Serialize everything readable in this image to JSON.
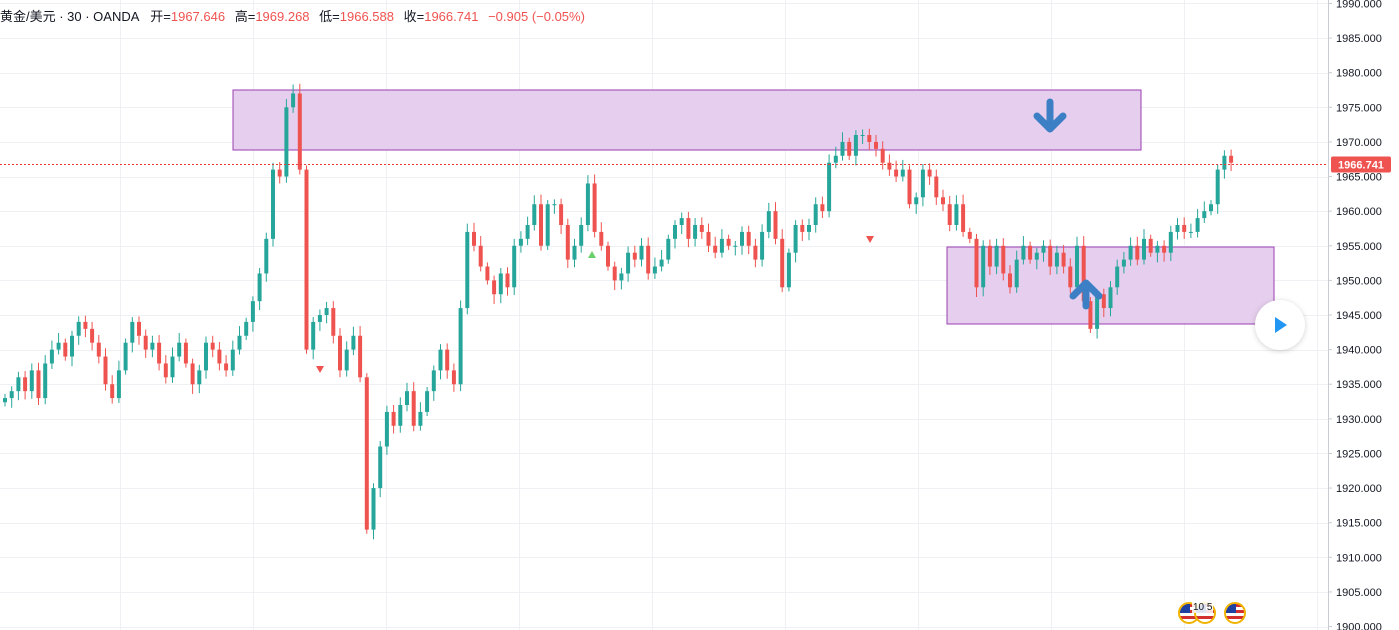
{
  "legend": {
    "symbol": "黄金/美元 · 30 · OANDA",
    "open_label": "开=",
    "open": "1967.646",
    "high_label": "高=",
    "high": "1969.268",
    "low_label": "低=",
    "low": "1966.588",
    "close_label": "收=",
    "close": "1966.741",
    "change": "−0.905 (−0.05%)"
  },
  "price_label": "1966.741",
  "flags_badge": "10 5",
  "icons": {
    "play": "play-icon",
    "arrow_down": "arrow-down-icon",
    "arrow_up": "arrow-up-icon",
    "flag": "us-flag-icon"
  },
  "colors": {
    "up": "#26a69a",
    "down": "#ef5350",
    "zone_fill": "#e6cfee",
    "zone_border": "#9a3fb0",
    "arrow": "#3d7fc4",
    "price_line": "#e53935"
  },
  "chart_data": {
    "type": "candlestick",
    "y_ticks": [
      "1990.000",
      "1985.000",
      "1980.000",
      "1975.000",
      "1970.000",
      "1965.000",
      "1960.000",
      "1955.000",
      "1950.000",
      "1945.000",
      "1940.000",
      "1935.000",
      "1930.000",
      "1925.000",
      "1920.000",
      "1915.000",
      "1910.000",
      "1905.000",
      "1900.000"
    ],
    "ylim": [
      1899.5,
      1990.5
    ],
    "current_price": 1966.741,
    "bars_close": [
      1933,
      1934,
      1936,
      1934,
      1937,
      1933,
      1938,
      1940,
      1941,
      1939,
      1942,
      1944,
      1943,
      1941,
      1939,
      1935,
      1933,
      1937,
      1941,
      1944,
      1942,
      1940,
      1941,
      1938,
      1936,
      1939,
      1941,
      1938,
      1935,
      1937,
      1941,
      1940,
      1938,
      1937,
      1940,
      1942,
      1944,
      1947,
      1951,
      1956,
      1966,
      1965,
      1975,
      1977,
      1966,
      1940,
      1944,
      1945,
      1946,
      1942,
      1937,
      1940,
      1942,
      1936,
      1914,
      1920,
      1926,
      1931,
      1929,
      1932,
      1934,
      1929,
      1931,
      1934,
      1937,
      1940,
      1937,
      1935,
      1946,
      1957,
      1955,
      1952,
      1950,
      1948,
      1951,
      1949,
      1955,
      1956,
      1958,
      1961,
      1955,
      1961,
      1961,
      1958,
      1953,
      1955,
      1958,
      1964,
      1957,
      1955,
      1952,
      1950,
      1951,
      1954,
      1953,
      1955,
      1951,
      1952,
      1953,
      1956,
      1958,
      1959,
      1956,
      1958,
      1957,
      1955,
      1954,
      1956,
      1955,
      1955,
      1957,
      1955,
      1953,
      1957,
      1960,
      1956,
      1949,
      1954,
      1958,
      1957,
      1958,
      1961,
      1960,
      1967,
      1968,
      1970,
      1968,
      1971,
      1971,
      1970,
      1969,
      1967,
      1966,
      1965,
      1966,
      1961,
      1962,
      1966,
      1965,
      1962,
      1961,
      1958,
      1961,
      1957,
      1956,
      1949,
      1955,
      1952,
      1955,
      1951,
      1949,
      1953,
      1955,
      1953,
      1954,
      1955,
      1952,
      1954,
      1952,
      1949,
      1955,
      1947,
      1943,
      1948,
      1946,
      1949,
      1952,
      1953,
      1955,
      1953,
      1956,
      1954,
      1955,
      1954,
      1957,
      1958,
      1957,
      1957,
      1959,
      1960,
      1961,
      1966,
      1968,
      1967
    ]
  }
}
